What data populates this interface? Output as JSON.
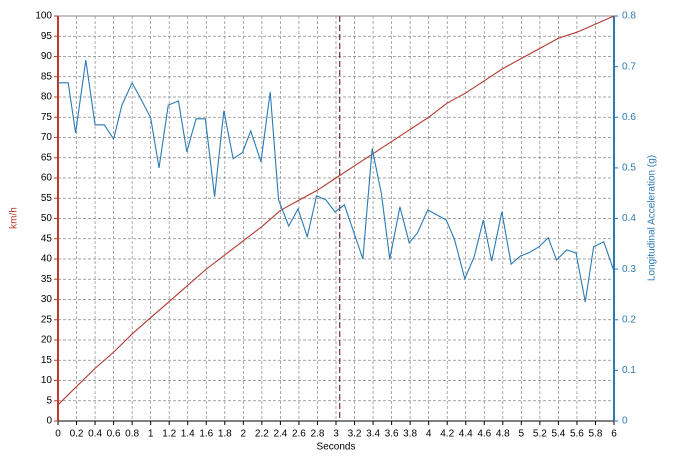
{
  "chart_data": {
    "type": "line",
    "x_label": "Seconds",
    "y_label": "km/h",
    "y2_label": "Longitudinal Acceleration (g)",
    "xlim": [
      0,
      6
    ],
    "ylim": [
      0,
      100
    ],
    "y2lim": [
      0,
      0.8
    ],
    "xticks": [
      0,
      0.2,
      0.4,
      0.6,
      0.8,
      1,
      1.2,
      1.4,
      1.6,
      1.8,
      2,
      2.2,
      2.4,
      2.6,
      2.8,
      3,
      3.2,
      3.4,
      3.6,
      3.8,
      4,
      4.2,
      4.4,
      4.6,
      4.8,
      5,
      5.2,
      5.4,
      5.6,
      5.8,
      6
    ],
    "yticks": [
      0,
      5,
      10,
      15,
      20,
      25,
      30,
      35,
      40,
      45,
      50,
      55,
      60,
      65,
      70,
      75,
      80,
      85,
      90,
      95,
      100
    ],
    "y2ticks": [
      0,
      0.1,
      0.2,
      0.3,
      0.4,
      0.5,
      0.6,
      0.7,
      0.8
    ],
    "grid": true,
    "y_color": "#c0392b",
    "y2_color": "#2a7ab5",
    "cursor_x": 3.04,
    "cursor_color": "#7a2a3a",
    "series": [
      {
        "color": "#b03a30",
        "axis": "y",
        "x": [
          0,
          0.2,
          0.4,
          0.6,
          0.8,
          1,
          1.2,
          1.4,
          1.6,
          1.8,
          2,
          2.2,
          2.4,
          2.6,
          2.8,
          3,
          3.2,
          3.4,
          3.6,
          3.8,
          4,
          4.2,
          4.4,
          4.6,
          4.8,
          5,
          5.2,
          5.4,
          5.6,
          5.8,
          6
        ],
        "values": [
          4,
          8.5,
          13,
          17,
          21.5,
          25.5,
          29.5,
          33.5,
          37.5,
          41,
          44.5,
          48,
          52,
          54.5,
          57,
          60,
          63,
          66,
          69,
          72,
          75,
          78.5,
          81,
          84,
          87,
          89.5,
          92,
          94.5,
          96,
          98,
          100
        ]
      },
      {
        "color": "#2a7ab5",
        "axis": "y2",
        "x": [
          0,
          0.11,
          0.19,
          0.3,
          0.4,
          0.5,
          0.6,
          0.69,
          0.8,
          0.9,
          1,
          1.09,
          1.19,
          1.3,
          1.39,
          1.49,
          1.59,
          1.69,
          1.79,
          1.89,
          1.99,
          2.08,
          2.19,
          2.29,
          2.38,
          2.49,
          2.59,
          2.69,
          2.79,
          2.89,
          2.99,
          3.09,
          3.19,
          3.29,
          3.39,
          3.49,
          3.58,
          3.69,
          3.79,
          3.88,
          3.99,
          4.09,
          4.19,
          4.28,
          4.39,
          4.49,
          4.59,
          4.68,
          4.79,
          4.89,
          4.99,
          5.08,
          5.19,
          5.29,
          5.38,
          5.49,
          5.59,
          5.69,
          5.78,
          5.89,
          6
        ],
        "values": [
          0.668,
          0.668,
          0.569,
          0.713,
          0.585,
          0.585,
          0.557,
          0.624,
          0.668,
          0.634,
          0.599,
          0.5,
          0.624,
          0.632,
          0.532,
          0.597,
          0.597,
          0.443,
          0.613,
          0.518,
          0.53,
          0.573,
          0.512,
          0.65,
          0.437,
          0.385,
          0.419,
          0.364,
          0.445,
          0.437,
          0.413,
          0.427,
          0.374,
          0.32,
          0.538,
          0.449,
          0.32,
          0.423,
          0.352,
          0.372,
          0.417,
          0.407,
          0.397,
          0.358,
          0.281,
          0.324,
          0.397,
          0.316,
          0.413,
          0.31,
          0.326,
          0.332,
          0.344,
          0.362,
          0.318,
          0.338,
          0.332,
          0.235,
          0.344,
          0.354,
          0.296
        ]
      }
    ]
  }
}
